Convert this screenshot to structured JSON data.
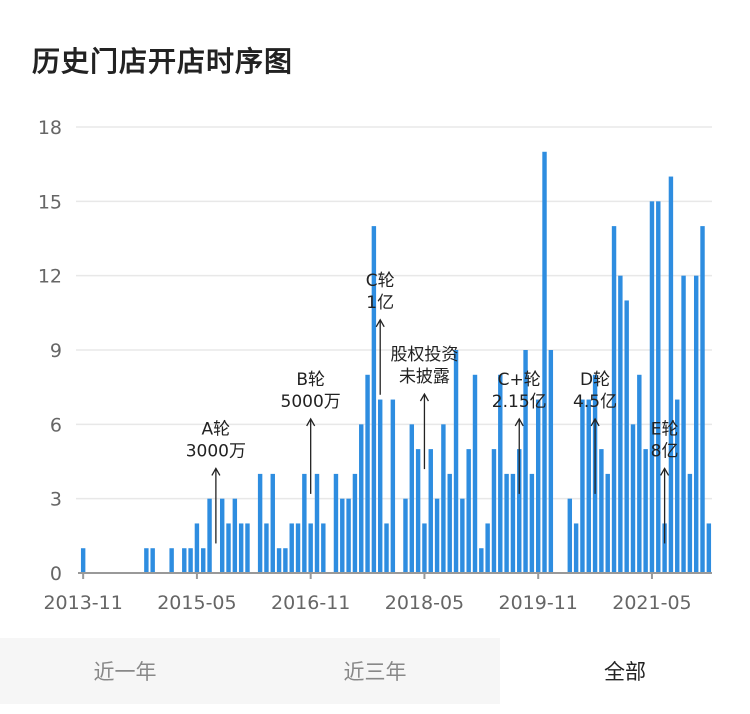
{
  "title": "历史门店开店时序图",
  "tabs": [
    {
      "label": "近一年",
      "active": false
    },
    {
      "label": "近三年",
      "active": false
    },
    {
      "label": "全部",
      "active": true
    }
  ],
  "colors": {
    "bar": "#2e8de0",
    "axis": "#999999",
    "grid": "#e8e8e8"
  },
  "chart_data": {
    "type": "bar",
    "title": "历史门店开店时序图",
    "xlabel": "",
    "ylabel": "",
    "ylim": [
      0,
      18
    ],
    "yticks": [
      0,
      3,
      6,
      9,
      12,
      15,
      18
    ],
    "xtick_labels": [
      "2013-11",
      "2015-05",
      "2016-11",
      "2018-05",
      "2019-11",
      "2021-05"
    ],
    "start_month": "2013-11",
    "values": [
      1,
      0,
      0,
      0,
      0,
      0,
      0,
      0,
      0,
      0,
      1,
      1,
      0,
      0,
      1,
      0,
      1,
      1,
      2,
      1,
      3,
      0,
      3,
      2,
      3,
      2,
      2,
      0,
      4,
      2,
      4,
      1,
      1,
      2,
      2,
      4,
      2,
      4,
      2,
      0,
      4,
      3,
      3,
      4,
      6,
      8,
      14,
      7,
      2,
      7,
      0,
      3,
      6,
      5,
      2,
      5,
      3,
      6,
      4,
      9,
      3,
      5,
      8,
      1,
      2,
      5,
      8,
      4,
      4,
      5,
      9,
      4,
      7,
      17,
      9,
      0,
      0,
      3,
      2,
      7,
      7,
      8,
      5,
      4,
      14,
      12,
      11,
      6,
      8,
      5,
      15,
      15,
      2,
      16,
      7,
      12,
      4,
      12,
      14,
      2
    ],
    "annotations": [
      {
        "lines": [
          "A轮",
          "3000万"
        ],
        "month": "2015-08",
        "value": 2
      },
      {
        "lines": [
          "B轮",
          "5000万"
        ],
        "month": "2016-11",
        "value": 4
      },
      {
        "lines": [
          "C轮",
          "1亿"
        ],
        "month": "2017-10",
        "value": 8
      },
      {
        "lines": [
          "股权投资",
          "未披露"
        ],
        "month": "2018-05",
        "value": 5
      },
      {
        "lines": [
          "C+轮",
          "2.15亿"
        ],
        "month": "2019-08",
        "value": 4
      },
      {
        "lines": [
          "D轮",
          "4.5亿"
        ],
        "month": "2020-08",
        "value": 4
      },
      {
        "lines": [
          "E轮",
          "8亿"
        ],
        "month": "2021-07",
        "value": 2
      }
    ],
    "grid": true,
    "legend": "none"
  }
}
